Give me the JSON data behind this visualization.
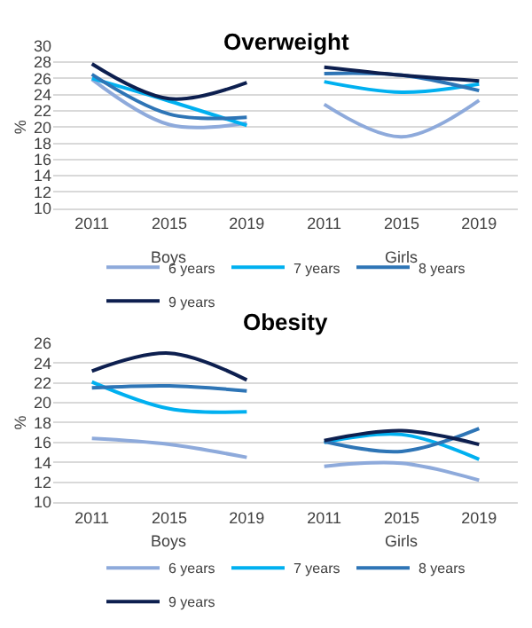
{
  "chart_data": [
    {
      "type": "line",
      "title": "Overweight",
      "ylabel": "%",
      "categories": [
        "2011",
        "2015",
        "2019",
        "2011",
        "2015",
        "2019"
      ],
      "ylim": [
        10,
        30
      ],
      "yticks": [
        10,
        12,
        14,
        16,
        18,
        20,
        22,
        24,
        26,
        28,
        30
      ],
      "grid": "y",
      "legend": "bottom",
      "annotations": [
        "Boys",
        "Girls"
      ],
      "series": [
        {
          "name": "6 years",
          "color": "#8eaadb",
          "values": [
            25.9,
            20.3,
            20.5,
            22.8,
            18.8,
            23.3
          ]
        },
        {
          "name": "7 years",
          "color": "#00b0f0",
          "values": [
            26.0,
            23.2,
            20.2,
            25.6,
            24.3,
            25.3
          ]
        },
        {
          "name": "8 years",
          "color": "#2e75b6",
          "values": [
            26.5,
            21.6,
            21.2,
            26.6,
            26.4,
            24.5
          ]
        },
        {
          "name": "9 years",
          "color": "#0d1f4f",
          "values": [
            27.8,
            23.5,
            25.5,
            27.4,
            26.4,
            25.7
          ]
        }
      ]
    },
    {
      "type": "line",
      "title": "Obesity",
      "ylabel": "%",
      "categories": [
        "2011",
        "2015",
        "2019",
        "2011",
        "2015",
        "2019"
      ],
      "ylim": [
        10,
        26
      ],
      "yticks": [
        10,
        12,
        14,
        16,
        18,
        20,
        22,
        24,
        26
      ],
      "grid": "y",
      "legend": "bottom",
      "annotations": [
        "Boys",
        "Girls"
      ],
      "series": [
        {
          "name": "6 years",
          "color": "#8eaadb",
          "values": [
            16.4,
            15.8,
            14.5,
            13.6,
            13.9,
            12.2
          ]
        },
        {
          "name": "7 years",
          "color": "#00b0f0",
          "values": [
            22.1,
            19.4,
            19.1,
            16.0,
            16.8,
            14.3
          ]
        },
        {
          "name": "8 years",
          "color": "#2e75b6",
          "values": [
            21.5,
            21.7,
            21.2,
            16.1,
            15.1,
            17.4
          ]
        },
        {
          "name": "9 years",
          "color": "#0d1f4f",
          "values": [
            23.2,
            25.0,
            22.3,
            16.2,
            17.2,
            15.8
          ]
        }
      ]
    }
  ]
}
